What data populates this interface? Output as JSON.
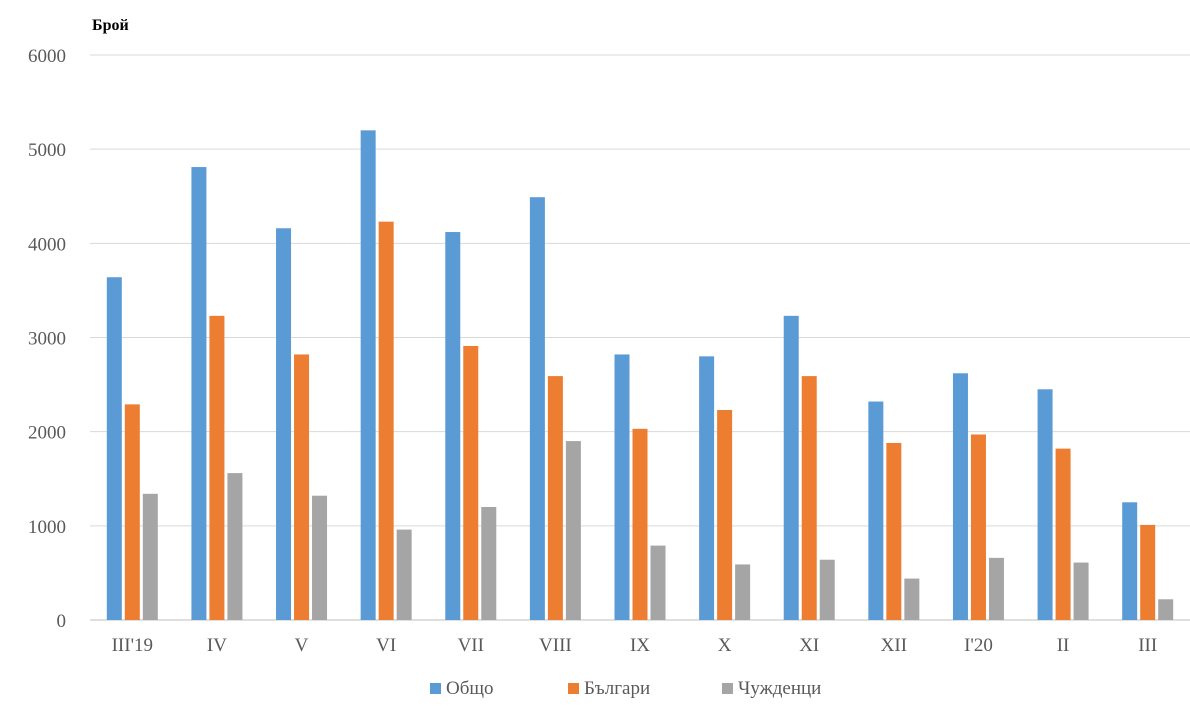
{
  "chart_data": {
    "type": "bar",
    "title": "",
    "xlabel": "",
    "ylabel": "Брой",
    "ylim": [
      0,
      6000
    ],
    "yticks": [
      0,
      1000,
      2000,
      3000,
      4000,
      5000,
      6000
    ],
    "grid": true,
    "legend_position": "bottom",
    "categories": [
      "III'19",
      "IV",
      "V",
      "VI",
      "VII",
      "VIII",
      "IX",
      "X",
      "XI",
      "XII",
      "I'20",
      "II",
      "III"
    ],
    "series": [
      {
        "name": "Общо",
        "color": "#5b9bd5",
        "values": [
          3640,
          4810,
          4160,
          5200,
          4120,
          4490,
          2820,
          2800,
          3230,
          2320,
          2620,
          2450,
          1250
        ]
      },
      {
        "name": "Българи",
        "color": "#ed7d31",
        "values": [
          2290,
          3230,
          2820,
          4230,
          2910,
          2590,
          2030,
          2230,
          2590,
          1880,
          1970,
          1820,
          1010
        ]
      },
      {
        "name": "Чужденци",
        "color": "#a5a5a5",
        "values": [
          1340,
          1560,
          1320,
          960,
          1200,
          1900,
          790,
          590,
          640,
          440,
          660,
          610,
          220
        ]
      }
    ]
  }
}
